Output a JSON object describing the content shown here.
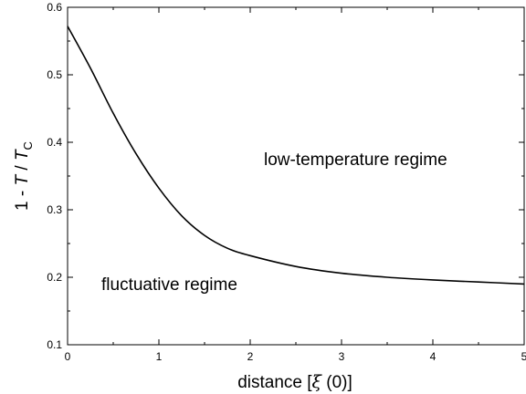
{
  "chart_data": {
    "type": "line",
    "xlabel": "distance [ξ (0)]",
    "ylabel": "1 - T / Tc",
    "ylabel_parts": {
      "pre": "1 - ",
      "T": "T",
      "slash": " / ",
      "Tc_main": "T",
      "Tc_sub": "C"
    },
    "xlabel_parts": {
      "pre": "distance [",
      "xi": "ξ",
      "post": " (0)]"
    },
    "xlim": [
      0,
      5
    ],
    "ylim": [
      0.1,
      0.6
    ],
    "xticks": [
      0,
      1,
      2,
      3,
      4,
      5
    ],
    "yticks": [
      0.1,
      0.2,
      0.3,
      0.4,
      0.5,
      0.6
    ],
    "xtick_labels": [
      "0",
      "1",
      "2",
      "3",
      "4",
      "5"
    ],
    "ytick_labels": [
      "0.1",
      "0.2",
      "0.3",
      "0.4",
      "0.5",
      "0.6"
    ],
    "grid": false,
    "series": [
      {
        "x": [
          0,
          0.25,
          0.5,
          0.75,
          1.0,
          1.25,
          1.5,
          1.75,
          2.0,
          2.5,
          3.0,
          3.5,
          4.0,
          4.5,
          5.0
        ],
        "y": [
          0.572,
          0.51,
          0.443,
          0.383,
          0.332,
          0.291,
          0.262,
          0.243,
          0.232,
          0.216,
          0.206,
          0.2,
          0.196,
          0.193,
          0.19
        ]
      }
    ],
    "annotations": [
      {
        "text": "low-temperature regime",
        "x": 2.15,
        "y": 0.38
      },
      {
        "text": "fluctuative regime",
        "x": 0.37,
        "y": 0.186
      }
    ]
  }
}
